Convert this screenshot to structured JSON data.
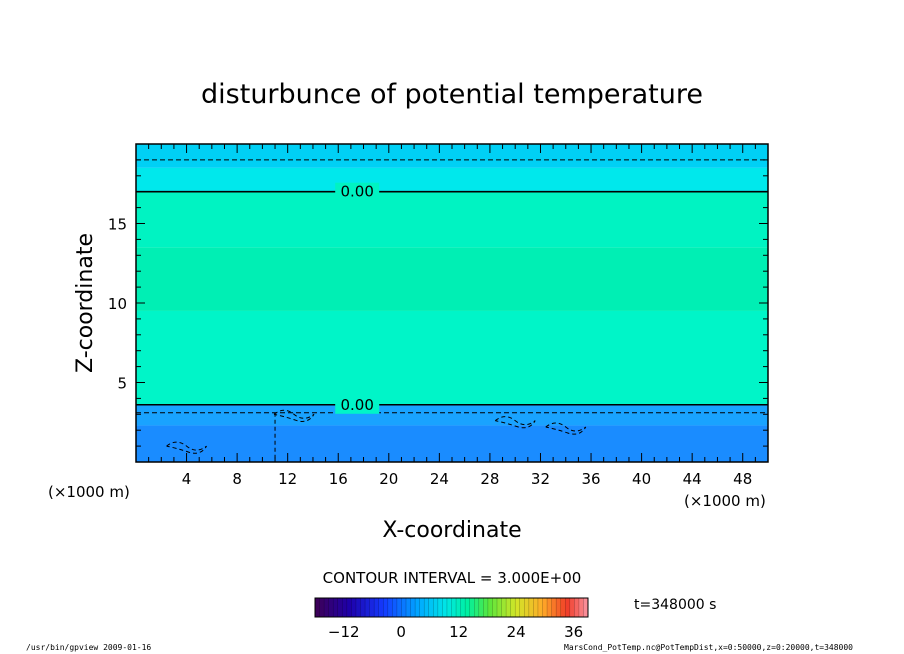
{
  "chart_data": {
    "type": "heatmap",
    "title": "disturbunce of potential temperature",
    "xlabel": "X-coordinate",
    "ylabel": "Z-coordinate",
    "x_unit_left": "(×1000 m)",
    "x_unit_right": "(×1000 m)",
    "xlim": [
      0,
      50
    ],
    "ylim": [
      0,
      20
    ],
    "x_ticks": [
      4,
      8,
      12,
      16,
      20,
      24,
      28,
      32,
      36,
      40,
      44,
      48
    ],
    "y_ticks": [
      5,
      10,
      15
    ],
    "contour_interval": "CONTOUR INTERVAL = 3.000E+00",
    "contour_labels": [
      {
        "text": "0.00",
        "x": 17.5,
        "z": 17.0
      },
      {
        "text": "0.00",
        "x": 17.5,
        "z": 3.6
      }
    ],
    "colorbar": {
      "min": -18,
      "max": 39,
      "ticks": [
        -12,
        0,
        12,
        24,
        36
      ]
    },
    "bands": [
      {
        "z_from": 0,
        "z_to": 2.3,
        "value": -9,
        "color": "#1a8cff"
      },
      {
        "z_from": 2.3,
        "z_to": 3.6,
        "value": -5,
        "color": "#19a3ff"
      },
      {
        "z_from": 3.6,
        "z_to": 9.5,
        "value": 1,
        "color": "#00f5c8"
      },
      {
        "z_from": 9.5,
        "z_to": 13.5,
        "value": 2,
        "color": "#00efb4"
      },
      {
        "z_from": 13.5,
        "z_to": 17.0,
        "value": 1,
        "color": "#00f3c2"
      },
      {
        "z_from": 17.0,
        "z_to": 18.5,
        "value": -1,
        "color": "#00e8ec"
      },
      {
        "z_from": 18.5,
        "z_to": 20,
        "value": -2,
        "color": "#00d0f5"
      }
    ],
    "time_label": "t=348000 s"
  },
  "footer": {
    "left": "/usr/bin/gpview   2009-01-16",
    "right": "MarsCond_PotTemp.nc@PotTempDist,x=0:50000,z=0:20000,t=348000"
  }
}
